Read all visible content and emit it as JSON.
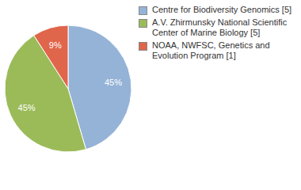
{
  "chart_data": {
    "type": "pie",
    "categories": [
      "Centre for Biodiversity Genomics [5]",
      "A.V. Zhirmunsky National Scientific Center of Marine Biology [5]",
      "NOAA, NWFSC, Genetics and Evolution Program [1]"
    ],
    "values": [
      45,
      45,
      9
    ],
    "value_labels": [
      "45%",
      "45%",
      "9%"
    ],
    "colors": [
      "#95b3d7",
      "#9bbb59",
      "#e0664b"
    ],
    "data_labels": true,
    "legend": "top-right"
  }
}
